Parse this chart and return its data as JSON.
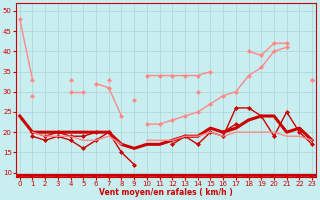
{
  "background_color": "#c8eef0",
  "grid_color": "#aadddd",
  "xlabel": "Vent moyen/en rafales ( km/h )",
  "x_ticks": [
    0,
    1,
    2,
    3,
    4,
    5,
    6,
    7,
    8,
    9,
    10,
    11,
    12,
    13,
    14,
    15,
    16,
    17,
    18,
    19,
    20,
    21,
    22,
    23
  ],
  "ylim": [
    9,
    52
  ],
  "xlim": [
    -0.3,
    23.3
  ],
  "yticks": [
    10,
    15,
    20,
    25,
    30,
    35,
    40,
    45,
    50
  ],
  "series": [
    {
      "name": "rafales_high_pink",
      "y": [
        48,
        33,
        null,
        null,
        33,
        null,
        32,
        31,
        24,
        null,
        34,
        34,
        34,
        34,
        34,
        35,
        null,
        null,
        40,
        39,
        42,
        42,
        null,
        33
      ],
      "color": "#ff8888",
      "lw": 1.0,
      "marker": "D",
      "ms": 2.0
    },
    {
      "name": "rafales_mid_pink",
      "y": [
        null,
        29,
        null,
        null,
        30,
        30,
        null,
        33,
        null,
        28,
        null,
        null,
        null,
        null,
        30,
        null,
        null,
        null,
        null,
        null,
        null,
        null,
        null,
        null
      ],
      "color": "#ff8888",
      "lw": 1.0,
      "marker": "D",
      "ms": 2.0
    },
    {
      "name": "mean_thick",
      "y": [
        24,
        20,
        20,
        20,
        20,
        20,
        20,
        20,
        17,
        16,
        17,
        17,
        18,
        19,
        19,
        21,
        20,
        21,
        23,
        24,
        24,
        20,
        21,
        18
      ],
      "color": "#cc0000",
      "lw": 2.2,
      "marker": null,
      "ms": 0
    },
    {
      "name": "mean_dotted1",
      "y": [
        null,
        20,
        19,
        20,
        19,
        19,
        20,
        20,
        15,
        12,
        null,
        null,
        17,
        19,
        17,
        20,
        19,
        26,
        26,
        24,
        19,
        25,
        20,
        17
      ],
      "color": "#cc0000",
      "lw": 1.0,
      "marker": "D",
      "ms": 2.0
    },
    {
      "name": "mean_dotted2",
      "y": [
        null,
        19,
        18,
        19,
        18,
        16,
        18,
        20,
        null,
        null,
        null,
        null,
        null,
        null,
        null,
        null,
        20,
        22,
        null,
        null,
        null,
        null,
        null,
        null
      ],
      "color": "#cc0000",
      "lw": 1.0,
      "marker": "D",
      "ms": 2.0
    },
    {
      "name": "flat_pink",
      "y": [
        null,
        20,
        19,
        19,
        19,
        18,
        18,
        19,
        17,
        null,
        18,
        18,
        18,
        19,
        19,
        20,
        19,
        20,
        20,
        20,
        20,
        19,
        19,
        18
      ],
      "color": "#ff8888",
      "lw": 1.0,
      "marker": null,
      "ms": 0
    },
    {
      "name": "rafales_climbing",
      "y": [
        null,
        null,
        null,
        null,
        null,
        null,
        null,
        null,
        null,
        null,
        22,
        22,
        23,
        24,
        25,
        27,
        29,
        30,
        34,
        36,
        40,
        41,
        null,
        33
      ],
      "color": "#ff8888",
      "lw": 1.0,
      "marker": "D",
      "ms": 2.0
    }
  ]
}
